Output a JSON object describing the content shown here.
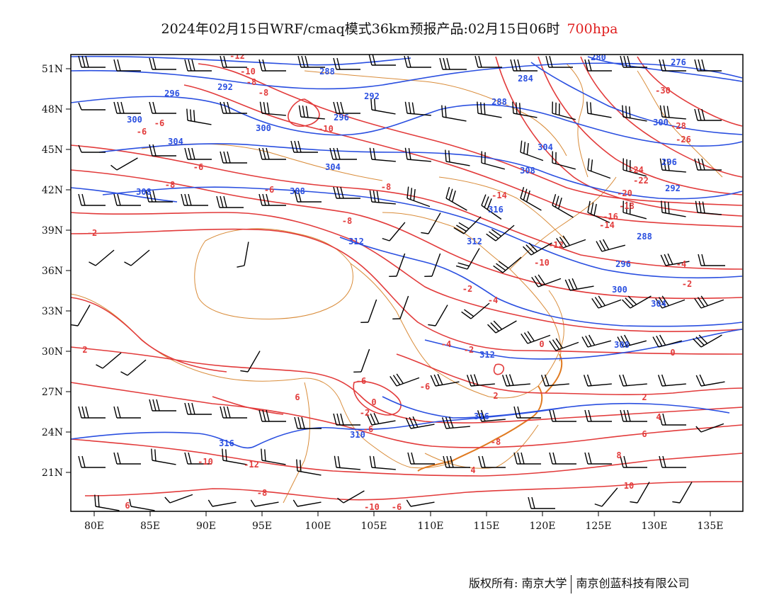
{
  "title": {
    "main": "2024年02月15日WRF/cmaq模式36km预报产品:02月15日06时",
    "level": "700hpa",
    "level_color": "#e02020"
  },
  "axes": {
    "lat_labels": [
      "51N",
      "48N",
      "45N",
      "42N",
      "39N",
      "36N",
      "33N",
      "30N",
      "27N",
      "24N",
      "21N"
    ],
    "lon_labels": [
      "80E",
      "85E",
      "90E",
      "95E",
      "100E",
      "105E",
      "110E",
      "115E",
      "120E",
      "125E",
      "130E",
      "135E"
    ]
  },
  "colors": {
    "temperature_contour": "#e23b3b",
    "height_contour": "#2a4fe0",
    "boundary": "#d98c3a",
    "wind_barb": "#000000"
  },
  "temperature_labels": [
    "-12",
    "-10",
    "-8",
    "-8",
    "-6",
    "-6",
    "-6",
    "-10",
    "-8",
    "-8",
    "-2",
    "-8",
    "-6",
    "-4",
    "-2",
    "2",
    "-6",
    "0",
    "-2",
    "2",
    "0",
    "-6",
    "-4",
    "-2",
    "-14",
    "-16",
    "-18",
    "-20",
    "-22",
    "-24",
    "-26",
    "-28",
    "-30",
    "-12",
    "-10",
    "-14",
    "-4",
    "-2",
    "0",
    "2",
    "4",
    "6",
    "8",
    "10",
    "6",
    "-6",
    "-8",
    "4",
    "-6",
    "-10",
    "-12",
    "-10",
    "-8",
    "6"
  ],
  "height_labels": [
    "288",
    "292",
    "296",
    "300",
    "304",
    "308",
    "312",
    "316",
    "280",
    "276",
    "284",
    "288",
    "292",
    "296",
    "300",
    "304",
    "308",
    "312",
    "316",
    "308",
    "304",
    "300",
    "296",
    "292",
    "288",
    "296",
    "300",
    "304",
    "308",
    "312",
    "316",
    "310"
  ],
  "footer": {
    "copyright": "版权所有: 南京大学",
    "company": "南京创蓝科技有限公司"
  }
}
